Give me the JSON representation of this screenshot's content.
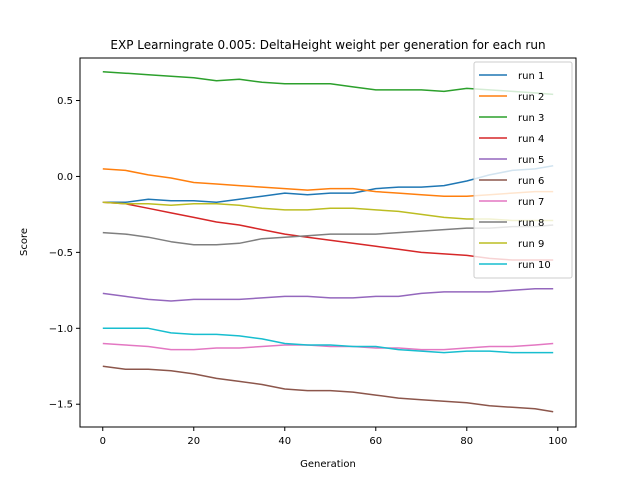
{
  "chart_data": {
    "type": "line",
    "title": "EXP Learningrate 0.005: DeltaHeight weight per generation for each run",
    "xlabel": "Generation",
    "ylabel": "Score",
    "xlim": [
      -5,
      104
    ],
    "ylim": [
      -1.65,
      0.78
    ],
    "xticks": [
      0,
      20,
      40,
      60,
      80,
      100
    ],
    "yticks": [
      -1.5,
      -1.0,
      -0.5,
      0.0,
      0.5
    ],
    "ytick_labels": [
      "−1.5",
      "−1.0",
      "−0.5",
      "0.0",
      "0.5"
    ],
    "grid": false,
    "legend_position": "top-right",
    "series": [
      {
        "name": "run 1",
        "color": "#1f77b4",
        "x": [
          0,
          5,
          10,
          15,
          20,
          25,
          30,
          35,
          40,
          45,
          50,
          55,
          60,
          65,
          70,
          75,
          80,
          85,
          90,
          95,
          99
        ],
        "y": [
          -0.17,
          -0.17,
          -0.15,
          -0.16,
          -0.16,
          -0.17,
          -0.15,
          -0.13,
          -0.11,
          -0.12,
          -0.11,
          -0.11,
          -0.08,
          -0.07,
          -0.07,
          -0.06,
          -0.03,
          0.01,
          0.04,
          0.05,
          0.07
        ]
      },
      {
        "name": "run 2",
        "color": "#ff7f0e",
        "x": [
          0,
          5,
          10,
          15,
          20,
          25,
          30,
          35,
          40,
          45,
          50,
          55,
          60,
          65,
          70,
          75,
          80,
          85,
          90,
          95,
          99
        ],
        "y": [
          0.05,
          0.04,
          0.01,
          -0.01,
          -0.04,
          -0.05,
          -0.06,
          -0.07,
          -0.08,
          -0.09,
          -0.08,
          -0.08,
          -0.1,
          -0.11,
          -0.12,
          -0.13,
          -0.13,
          -0.12,
          -0.11,
          -0.1,
          -0.1
        ]
      },
      {
        "name": "run 3",
        "color": "#2ca02c",
        "x": [
          0,
          5,
          10,
          15,
          20,
          25,
          30,
          35,
          40,
          45,
          50,
          55,
          60,
          65,
          70,
          75,
          80,
          85,
          90,
          95,
          99
        ],
        "y": [
          0.69,
          0.68,
          0.67,
          0.66,
          0.65,
          0.63,
          0.64,
          0.62,
          0.61,
          0.61,
          0.61,
          0.59,
          0.57,
          0.57,
          0.57,
          0.56,
          0.58,
          0.57,
          0.56,
          0.55,
          0.54
        ]
      },
      {
        "name": "run 4",
        "color": "#d62728",
        "x": [
          0,
          5,
          10,
          15,
          20,
          25,
          30,
          35,
          40,
          45,
          50,
          55,
          60,
          65,
          70,
          75,
          80,
          85,
          90,
          95,
          99
        ],
        "y": [
          -0.17,
          -0.18,
          -0.21,
          -0.24,
          -0.27,
          -0.3,
          -0.32,
          -0.35,
          -0.38,
          -0.4,
          -0.42,
          -0.44,
          -0.46,
          -0.48,
          -0.5,
          -0.51,
          -0.52,
          -0.54,
          -0.55,
          -0.55,
          -0.55
        ]
      },
      {
        "name": "run 5",
        "color": "#9467bd",
        "x": [
          0,
          5,
          10,
          15,
          20,
          25,
          30,
          35,
          40,
          45,
          50,
          55,
          60,
          65,
          70,
          75,
          80,
          85,
          90,
          95,
          99
        ],
        "y": [
          -0.77,
          -0.79,
          -0.81,
          -0.82,
          -0.81,
          -0.81,
          -0.81,
          -0.8,
          -0.79,
          -0.79,
          -0.8,
          -0.8,
          -0.79,
          -0.79,
          -0.77,
          -0.76,
          -0.76,
          -0.76,
          -0.75,
          -0.74,
          -0.74
        ]
      },
      {
        "name": "run 6",
        "color": "#8c564b",
        "x": [
          0,
          5,
          10,
          15,
          20,
          25,
          30,
          35,
          40,
          45,
          50,
          55,
          60,
          65,
          70,
          75,
          80,
          85,
          90,
          95,
          99
        ],
        "y": [
          -1.25,
          -1.27,
          -1.27,
          -1.28,
          -1.3,
          -1.33,
          -1.35,
          -1.37,
          -1.4,
          -1.41,
          -1.41,
          -1.42,
          -1.44,
          -1.46,
          -1.47,
          -1.48,
          -1.49,
          -1.51,
          -1.52,
          -1.53,
          -1.55
        ]
      },
      {
        "name": "run 7",
        "color": "#e377c2",
        "x": [
          0,
          5,
          10,
          15,
          20,
          25,
          30,
          35,
          40,
          45,
          50,
          55,
          60,
          65,
          70,
          75,
          80,
          85,
          90,
          95,
          99
        ],
        "y": [
          -1.1,
          -1.11,
          -1.12,
          -1.14,
          -1.14,
          -1.13,
          -1.13,
          -1.12,
          -1.11,
          -1.11,
          -1.12,
          -1.12,
          -1.13,
          -1.13,
          -1.14,
          -1.14,
          -1.13,
          -1.12,
          -1.12,
          -1.11,
          -1.1
        ]
      },
      {
        "name": "run 8",
        "color": "#7f7f7f",
        "x": [
          0,
          5,
          10,
          15,
          20,
          25,
          30,
          35,
          40,
          45,
          50,
          55,
          60,
          65,
          70,
          75,
          80,
          85,
          90,
          95,
          99
        ],
        "y": [
          -0.37,
          -0.38,
          -0.4,
          -0.43,
          -0.45,
          -0.45,
          -0.44,
          -0.41,
          -0.4,
          -0.39,
          -0.38,
          -0.38,
          -0.38,
          -0.37,
          -0.36,
          -0.35,
          -0.34,
          -0.34,
          -0.33,
          -0.33,
          -0.32
        ]
      },
      {
        "name": "run 9",
        "color": "#bcbd22",
        "x": [
          0,
          5,
          10,
          15,
          20,
          25,
          30,
          35,
          40,
          45,
          50,
          55,
          60,
          65,
          70,
          75,
          80,
          85,
          90,
          95,
          99
        ],
        "y": [
          -0.17,
          -0.18,
          -0.18,
          -0.19,
          -0.18,
          -0.18,
          -0.19,
          -0.21,
          -0.22,
          -0.22,
          -0.21,
          -0.21,
          -0.22,
          -0.23,
          -0.25,
          -0.27,
          -0.28,
          -0.28,
          -0.29,
          -0.29,
          -0.29
        ]
      },
      {
        "name": "run 10",
        "color": "#17becf",
        "x": [
          0,
          5,
          10,
          15,
          20,
          25,
          30,
          35,
          40,
          45,
          50,
          55,
          60,
          65,
          70,
          75,
          80,
          85,
          90,
          95,
          99
        ],
        "y": [
          -1.0,
          -1.0,
          -1.0,
          -1.03,
          -1.04,
          -1.04,
          -1.05,
          -1.07,
          -1.1,
          -1.11,
          -1.11,
          -1.12,
          -1.12,
          -1.14,
          -1.15,
          -1.16,
          -1.15,
          -1.15,
          -1.16,
          -1.16,
          -1.16
        ]
      }
    ]
  }
}
